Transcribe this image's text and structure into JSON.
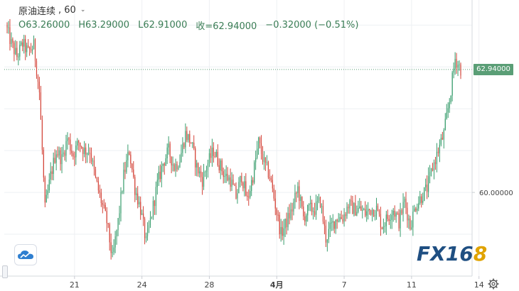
{
  "header": {
    "symbol_label": "原油连续",
    "interval_label": ", 60",
    "open_label": "O63.26000",
    "high_label": "H63.29000",
    "low_label": "L62.91000",
    "close_label": "收=62.94000",
    "change_label": "−0.32000 (−0.51%)"
  },
  "price_tag": "62.94000",
  "logo": {
    "fx": "FX",
    "one": "1",
    "six": "6",
    "eight": "8"
  },
  "colors": {
    "up": "#3a9e6e",
    "down": "#d4453a",
    "grid": "#eef0f3",
    "axis_text": "#444444",
    "last_price_line": "#5a9e76",
    "logo_blue": "#1f4f82",
    "logo_gold": "#e0a300"
  },
  "icons": {
    "cloud_button": "cloud-chart-icon",
    "settings": "gear-icon",
    "scroll_handle": "handle-icon"
  },
  "chart_data": {
    "type": "candlestick",
    "interval": "60",
    "y_axis": {
      "ticks": [
        60.0
      ],
      "tick_labels": [
        "60.00000"
      ],
      "ylim": [
        58.0,
        64.6
      ]
    },
    "x_axis": {
      "tick_labels": [
        "21",
        "24",
        "28",
        "4月",
        "7",
        "11",
        "14"
      ],
      "tick_positions": [
        12,
        24,
        36,
        48,
        60,
        72,
        84
      ]
    },
    "last_price": 62.94,
    "open": 63.26,
    "high": 63.29,
    "low": 62.91,
    "close": 62.94,
    "change": -0.32,
    "change_pct": -0.51,
    "grid": true,
    "anchors": [
      [
        0,
        64.0
      ],
      [
        1,
        63.55
      ],
      [
        2,
        63.25
      ],
      [
        3,
        63.55
      ],
      [
        4,
        63.35
      ],
      [
        5,
        63.5
      ],
      [
        6,
        62.4
      ],
      [
        7,
        59.6
      ],
      [
        8,
        60.4
      ],
      [
        9,
        61.0
      ],
      [
        10,
        60.8
      ],
      [
        11,
        61.3
      ],
      [
        12,
        60.9
      ],
      [
        13,
        61.2
      ],
      [
        14,
        61.0
      ],
      [
        15,
        61.0
      ],
      [
        16,
        60.3
      ],
      [
        17,
        59.8
      ],
      [
        18,
        59.3
      ],
      [
        19,
        58.4
      ],
      [
        20,
        59.3
      ],
      [
        21,
        60.4
      ],
      [
        22,
        61.0
      ],
      [
        23,
        60.1
      ],
      [
        24,
        59.6
      ],
      [
        25,
        58.8
      ],
      [
        26,
        59.5
      ],
      [
        27,
        60.2
      ],
      [
        28,
        60.7
      ],
      [
        29,
        61.0
      ],
      [
        30,
        60.6
      ],
      [
        31,
        60.8
      ],
      [
        32,
        61.4
      ],
      [
        33,
        61.2
      ],
      [
        34,
        60.6
      ],
      [
        35,
        60.3
      ],
      [
        36,
        60.7
      ],
      [
        37,
        61.0
      ],
      [
        38,
        60.7
      ],
      [
        39,
        60.4
      ],
      [
        40,
        60.3
      ],
      [
        41,
        59.9
      ],
      [
        42,
        60.4
      ],
      [
        43,
        59.8
      ],
      [
        44,
        60.4
      ],
      [
        45,
        61.2
      ],
      [
        46,
        60.7
      ],
      [
        47,
        60.4
      ],
      [
        48,
        59.7
      ],
      [
        49,
        59.0
      ],
      [
        50,
        59.3
      ],
      [
        51,
        59.6
      ],
      [
        52,
        60.1
      ],
      [
        53,
        59.4
      ],
      [
        54,
        59.6
      ],
      [
        55,
        59.6
      ],
      [
        56,
        59.8
      ],
      [
        57,
        58.9
      ],
      [
        58,
        59.2
      ],
      [
        59,
        59.4
      ],
      [
        60,
        59.4
      ],
      [
        61,
        59.7
      ],
      [
        62,
        59.6
      ],
      [
        63,
        59.6
      ],
      [
        64,
        59.5
      ],
      [
        65,
        59.6
      ],
      [
        66,
        59.6
      ],
      [
        67,
        59.2
      ],
      [
        68,
        59.4
      ],
      [
        69,
        59.6
      ],
      [
        70,
        59.3
      ],
      [
        71,
        59.8
      ],
      [
        72,
        59.2
      ],
      [
        73,
        59.7
      ],
      [
        74,
        59.9
      ],
      [
        75,
        60.1
      ],
      [
        76,
        60.6
      ],
      [
        77,
        61.0
      ],
      [
        78,
        61.4
      ],
      [
        79,
        62.2
      ],
      [
        80,
        63.2
      ],
      [
        81,
        62.95
      ]
    ]
  }
}
